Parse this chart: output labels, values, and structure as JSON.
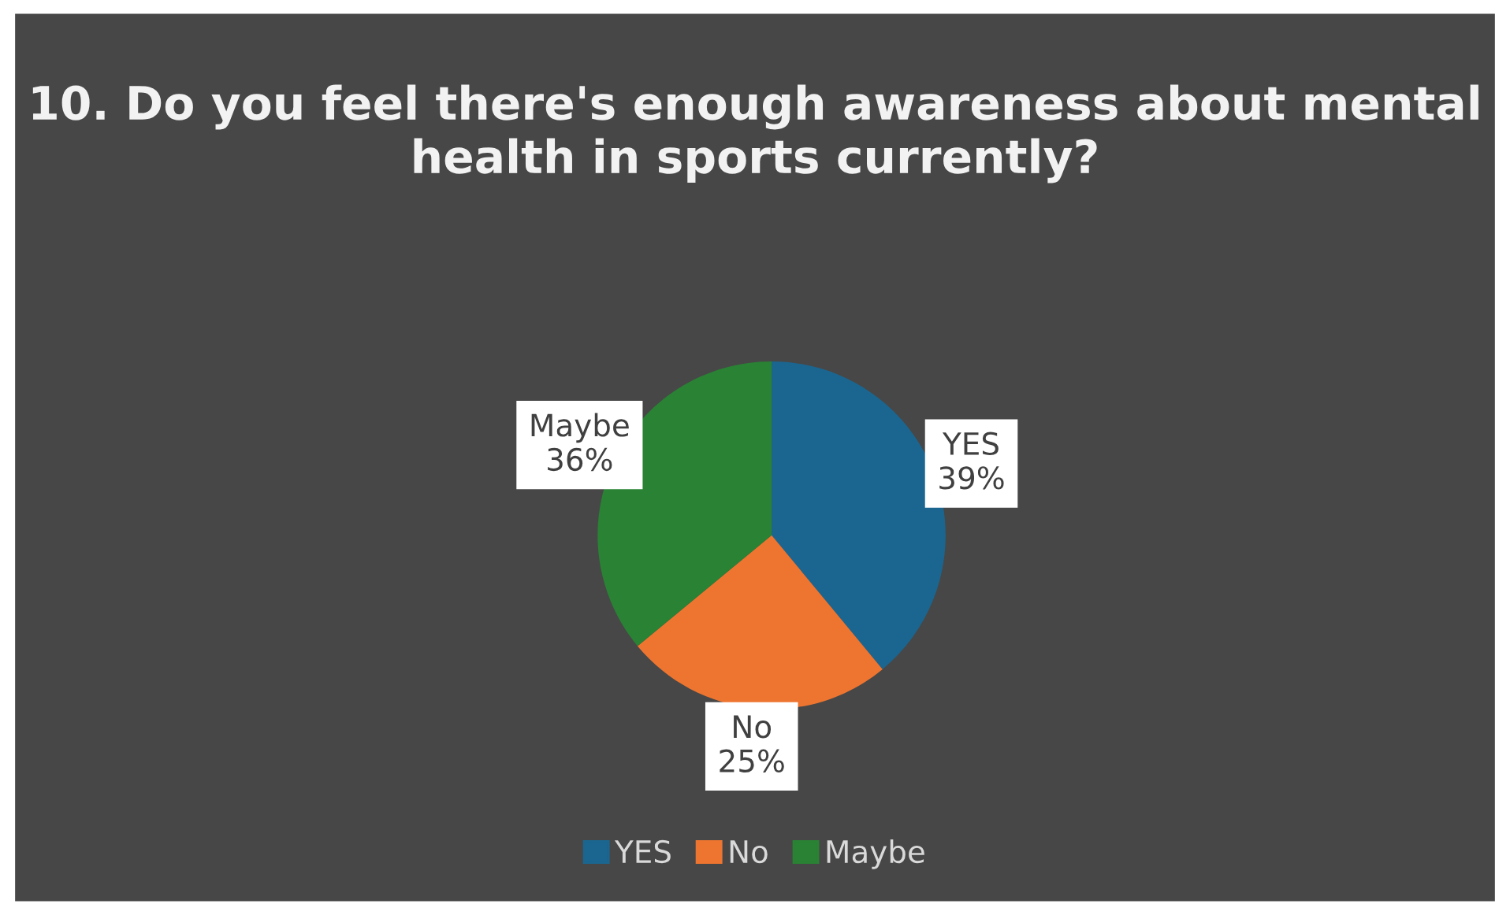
{
  "chart_data": {
    "type": "pie",
    "title": "10. Do you feel there's enough awareness about mental health in sports currently?",
    "categories": [
      "YES",
      "No",
      "Maybe"
    ],
    "values": [
      39,
      25,
      36
    ],
    "value_labels": [
      "39%",
      "25%",
      "36%"
    ],
    "colors": [
      "#1b6690",
      "#ee7530",
      "#2a8234"
    ],
    "legend": "bottom"
  }
}
